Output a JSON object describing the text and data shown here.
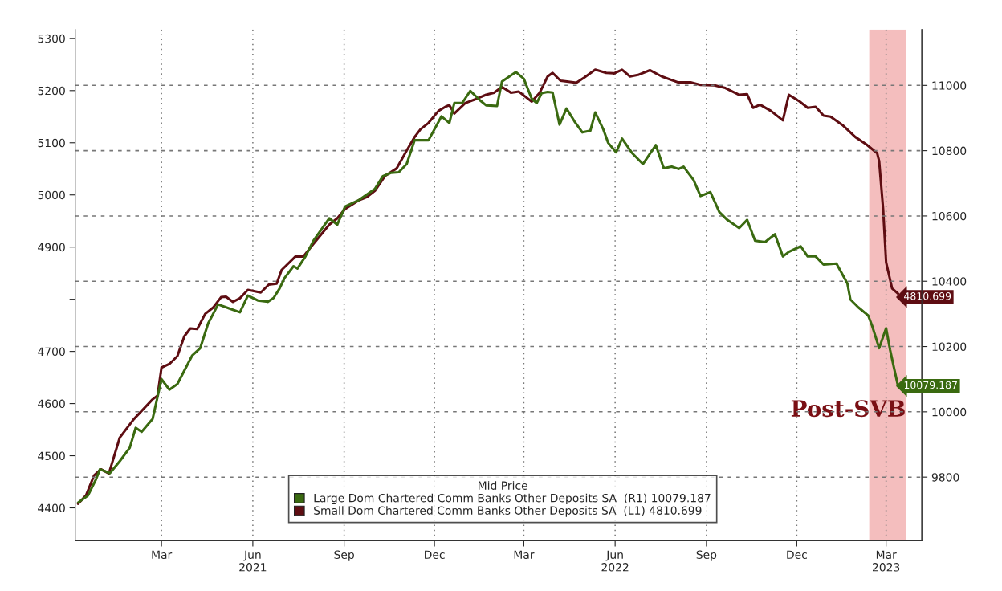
{
  "chart_data": {
    "type": "line",
    "legend_title": "Mid Price",
    "annotations": [
      "Post-SVB"
    ],
    "xlim": [
      "2020-12-19",
      "2023-04-21"
    ],
    "xticks": [
      {
        "value": "2021-03-16",
        "label": "Mar"
      },
      {
        "value": "2021-06-16",
        "label": "Jun\n2021"
      },
      {
        "value": "2021-09-16",
        "label": "Sep"
      },
      {
        "value": "2021-12-16",
        "label": "Dec"
      },
      {
        "value": "2022-03-16",
        "label": "Mar"
      },
      {
        "value": "2022-06-16",
        "label": "Jun\n2022"
      },
      {
        "value": "2022-09-16",
        "label": "Sep"
      },
      {
        "value": "2022-12-16",
        "label": "Dec"
      },
      {
        "value": "2023-03-16",
        "label": "Mar\n2023"
      }
    ],
    "ylim": [
      4337,
      5317
    ],
    "yticks": [
      4400,
      4500,
      4600,
      4700,
      {
        "value": 4800,
        "label": null
      },
      4900,
      5000,
      5100,
      5200,
      5300
    ],
    "y2lim": [
      9605,
      11171
    ],
    "y2ticks": [
      9800,
      10000,
      10200,
      10400,
      10600,
      10800,
      11000
    ],
    "grid": true,
    "legend": "bottom",
    "bands": [
      {
        "axis": "x",
        "from": "2023-02-27",
        "to": "2023-04-05",
        "color": "#f2b3b3"
      }
    ],
    "series": [
      {
        "name": "Large Dom Chartered Comm Banks Other Deposits SA  (R1) 10079.187",
        "color": "#3a6a10",
        "axis": "y2",
        "x": [
          "2020-12-22",
          "2021-01-01",
          "2021-01-09",
          "2021-01-13",
          "2021-01-23",
          "2021-02-02",
          "2021-02-12",
          "2021-02-18",
          "2021-02-24",
          "2021-03-07",
          "2021-03-16",
          "2021-03-24",
          "2021-04-01",
          "2021-04-16",
          "2021-04-24",
          "2021-05-02",
          "2021-05-12",
          "2021-05-23",
          "2021-06-03",
          "2021-06-11",
          "2021-06-21",
          "2021-07-01",
          "2021-07-07",
          "2021-07-13",
          "2021-07-18",
          "2021-07-27",
          "2021-07-31",
          "2021-08-08",
          "2021-08-16",
          "2021-09-01",
          "2021-09-09",
          "2021-09-17",
          "2021-10-01",
          "2021-10-17",
          "2021-10-25",
          "2021-11-02",
          "2021-11-10",
          "2021-11-18",
          "2021-11-26",
          "2021-12-10",
          "2021-12-23",
          "2021-12-31",
          "2022-01-05",
          "2022-01-13",
          "2022-01-21",
          "2022-01-31",
          "2022-02-06",
          "2022-02-17",
          "2022-02-22",
          "2022-03-08",
          "2022-03-16",
          "2022-03-24",
          "2022-03-29",
          "2022-04-03",
          "2022-04-09",
          "2022-04-14",
          "2022-04-21",
          "2022-04-28",
          "2022-05-06",
          "2022-05-14",
          "2022-05-22",
          "2022-05-27",
          "2022-06-04",
          "2022-06-09",
          "2022-06-17",
          "2022-06-23",
          "2022-07-03",
          "2022-07-14",
          "2022-07-27",
          "2022-08-04",
          "2022-08-12",
          "2022-08-19",
          "2022-08-24",
          "2022-09-03",
          "2022-09-10",
          "2022-09-20",
          "2022-09-29",
          "2022-10-07",
          "2022-10-19",
          "2022-10-27",
          "2022-11-04",
          "2022-11-14",
          "2022-11-24",
          "2022-12-02",
          "2022-12-08",
          "2022-12-20",
          "2022-12-27",
          "2023-01-04",
          "2023-01-12",
          "2023-01-25",
          "2023-02-05",
          "2023-02-08",
          "2023-02-16",
          "2023-02-26",
          "2023-03-02",
          "2023-03-09",
          "2023-03-16",
          "2023-03-20",
          "2023-03-24",
          "2023-03-28"
        ],
        "values": [
          9722,
          9744,
          9793,
          9824,
          9812,
          9849,
          9890,
          9951,
          9939,
          9978,
          10100,
          10068,
          10085,
          10173,
          10195,
          10271,
          10329,
          10317,
          10305,
          10356,
          10341,
          10337,
          10349,
          10378,
          10410,
          10446,
          10439,
          10476,
          10524,
          10593,
          10573,
          10629,
          10649,
          10683,
          10722,
          10732,
          10734,
          10759,
          10832,
          10832,
          10905,
          10885,
          10946,
          10946,
          10983,
          10954,
          10939,
          10937,
          11012,
          11041,
          11020,
          10959,
          10946,
          10976,
          10980,
          10978,
          10880,
          10929,
          10890,
          10856,
          10861,
          10917,
          10866,
          10824,
          10795,
          10837,
          10793,
          10759,
          10817,
          10746,
          10751,
          10744,
          10751,
          10710,
          10661,
          10673,
          10612,
          10588,
          10563,
          10588,
          10524,
          10520,
          10544,
          10476,
          10490,
          10507,
          10476,
          10476,
          10451,
          10454,
          10393,
          10344,
          10320,
          10295,
          10263,
          10195,
          10256,
          10190,
          10134,
          10079.187
        ],
        "value_labels": [
          null,
          null,
          null,
          null,
          null,
          null,
          null,
          null,
          null,
          null,
          null,
          null,
          null,
          null,
          null,
          null,
          null,
          null,
          null,
          null,
          null,
          null,
          null,
          null,
          null,
          null,
          null,
          null,
          null,
          null,
          null,
          null,
          null,
          null,
          null,
          null,
          null,
          null,
          null,
          null,
          null,
          null,
          null,
          null,
          null,
          null,
          null,
          null,
          null,
          null,
          null,
          null,
          null,
          null,
          null,
          null,
          null,
          null,
          null,
          null,
          null,
          null,
          null,
          null,
          null,
          null,
          null,
          null,
          null,
          null,
          null,
          null,
          null,
          null,
          null,
          null,
          null,
          null,
          null,
          null,
          null,
          null,
          null,
          null,
          null,
          null,
          null,
          null,
          null,
          null,
          null,
          null,
          null,
          null,
          null,
          null,
          null,
          null,
          null,
          "10079.187"
        ]
      },
      {
        "name": "Small Dom Chartered Comm Banks Other Deposits SA  (L1) 4810.699",
        "color": "#5e0d12",
        "axis": "y",
        "x": [
          "2020-12-22",
          "2020-12-30",
          "2021-01-07",
          "2021-01-14",
          "2021-01-22",
          "2021-02-02",
          "2021-02-16",
          "2021-03-07",
          "2021-03-12",
          "2021-03-16",
          "2021-03-24",
          "2021-04-01",
          "2021-04-08",
          "2021-04-14",
          "2021-04-21",
          "2021-04-29",
          "2021-05-07",
          "2021-05-15",
          "2021-05-20",
          "2021-05-27",
          "2021-06-03",
          "2021-06-11",
          "2021-06-24",
          "2021-07-02",
          "2021-07-10",
          "2021-07-15",
          "2021-07-29",
          "2021-08-06",
          "2021-08-16",
          "2021-09-01",
          "2021-09-09",
          "2021-09-17",
          "2021-10-01",
          "2021-10-09",
          "2021-10-17",
          "2021-10-27",
          "2021-11-08",
          "2021-11-18",
          "2021-11-26",
          "2021-12-02",
          "2021-12-10",
          "2021-12-20",
          "2021-12-27",
          "2021-12-31",
          "2022-01-05",
          "2022-01-16",
          "2022-01-27",
          "2022-02-06",
          "2022-02-14",
          "2022-02-22",
          "2022-03-03",
          "2022-03-11",
          "2022-03-24",
          "2022-04-01",
          "2022-04-09",
          "2022-04-14",
          "2022-04-22",
          "2022-05-08",
          "2022-05-16",
          "2022-05-27",
          "2022-06-07",
          "2022-06-15",
          "2022-06-23",
          "2022-07-01",
          "2022-07-09",
          "2022-07-21",
          "2022-08-02",
          "2022-08-18",
          "2022-08-31",
          "2022-09-10",
          "2022-09-24",
          "2022-10-05",
          "2022-10-19",
          "2022-10-27",
          "2022-11-02",
          "2022-11-09",
          "2022-11-20",
          "2022-12-02",
          "2022-12-08",
          "2022-12-19",
          "2022-12-27",
          "2023-01-04",
          "2023-01-12",
          "2023-01-19",
          "2023-01-31",
          "2023-02-13",
          "2023-02-24",
          "2023-03-07",
          "2023-03-09",
          "2023-03-13",
          "2023-03-16",
          "2023-03-22",
          "2023-03-28"
        ],
        "values": [
          4408,
          4424,
          4462,
          4474,
          4466,
          4535,
          4570,
          4608,
          4615,
          4669,
          4676,
          4691,
          4729,
          4744,
          4743,
          4772,
          4784,
          4804,
          4805,
          4795,
          4802,
          4818,
          4813,
          4828,
          4830,
          4856,
          4882,
          4882,
          4906,
          4943,
          4955,
          4973,
          4990,
          4996,
          5008,
          5036,
          5051,
          5085,
          5111,
          5126,
          5138,
          5161,
          5169,
          5172,
          5156,
          5176,
          5184,
          5192,
          5196,
          5207,
          5196,
          5198,
          5179,
          5196,
          5227,
          5234,
          5219,
          5215,
          5225,
          5240,
          5234,
          5233,
          5240,
          5227,
          5230,
          5239,
          5227,
          5216,
          5216,
          5211,
          5210,
          5205,
          5192,
          5193,
          5167,
          5173,
          5161,
          5143,
          5192,
          5179,
          5167,
          5169,
          5152,
          5150,
          5134,
          5111,
          5097,
          5080,
          5065,
          4973,
          4871,
          4821,
          4810.699
        ],
        "value_labels": [
          null,
          null,
          null,
          null,
          null,
          null,
          null,
          null,
          null,
          null,
          null,
          null,
          null,
          null,
          null,
          null,
          null,
          null,
          null,
          null,
          null,
          null,
          null,
          null,
          null,
          null,
          null,
          null,
          null,
          null,
          null,
          null,
          null,
          null,
          null,
          null,
          null,
          null,
          null,
          null,
          null,
          null,
          null,
          null,
          null,
          null,
          null,
          null,
          null,
          null,
          null,
          null,
          null,
          null,
          null,
          null,
          null,
          null,
          null,
          null,
          null,
          null,
          null,
          null,
          null,
          null,
          null,
          null,
          null,
          null,
          null,
          null,
          null,
          null,
          null,
          null,
          null,
          null,
          null,
          null,
          null,
          null,
          null,
          null,
          null,
          null,
          null,
          null,
          null,
          null,
          null,
          null,
          "4810.699"
        ]
      }
    ]
  }
}
